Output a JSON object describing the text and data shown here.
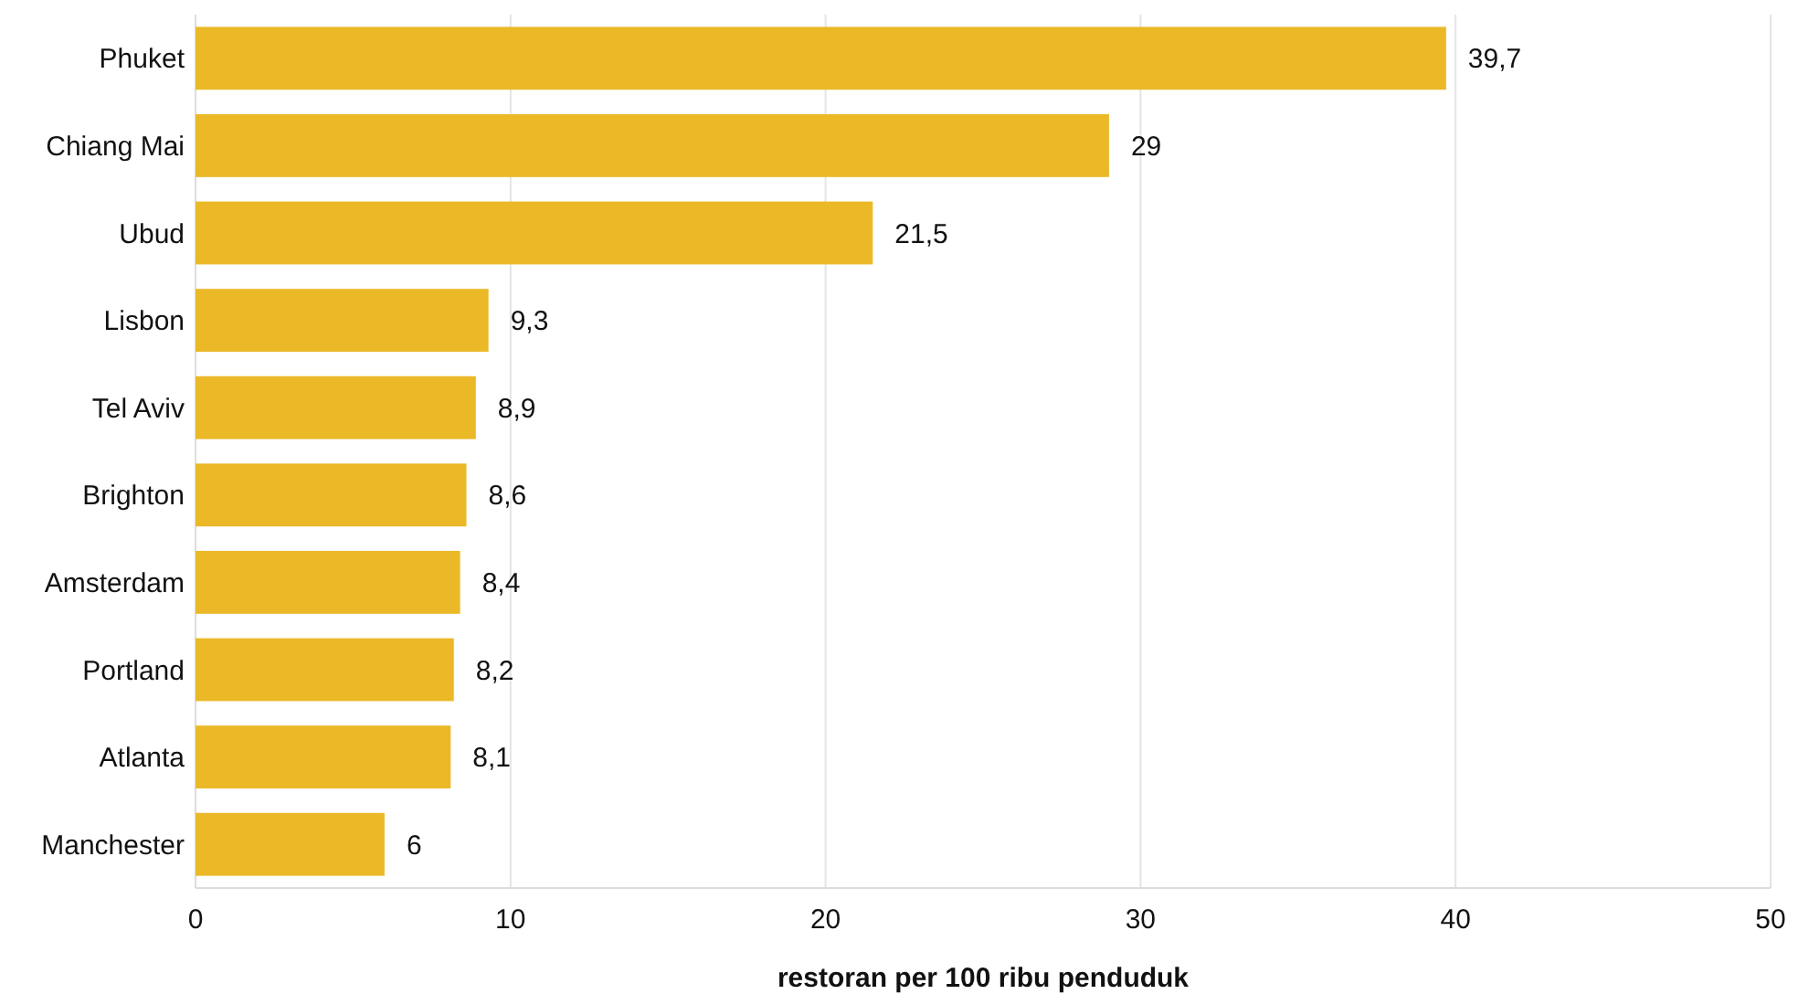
{
  "chart_data": {
    "type": "bar",
    "orientation": "horizontal",
    "xlabel": "restoran per 100 ribu penduduk",
    "categories": [
      "Phuket",
      "Chiang Mai",
      "Ubud",
      "Lisbon",
      "Tel Aviv",
      "Brighton",
      "Amsterdam",
      "Portland",
      "Atlanta",
      "Manchester"
    ],
    "values": [
      39.7,
      29,
      21.5,
      9.3,
      8.9,
      8.6,
      8.4,
      8.2,
      8.1,
      6
    ],
    "value_labels": [
      "39,7",
      "29",
      "21,5",
      "9,3",
      "8,9",
      "8,6",
      "8,4",
      "8,2",
      "8,1",
      "6"
    ],
    "color": "#ebb928",
    "xlim": [
      0,
      50
    ],
    "xticks": [
      0,
      10,
      20,
      30,
      40,
      50
    ],
    "grid": "x"
  }
}
